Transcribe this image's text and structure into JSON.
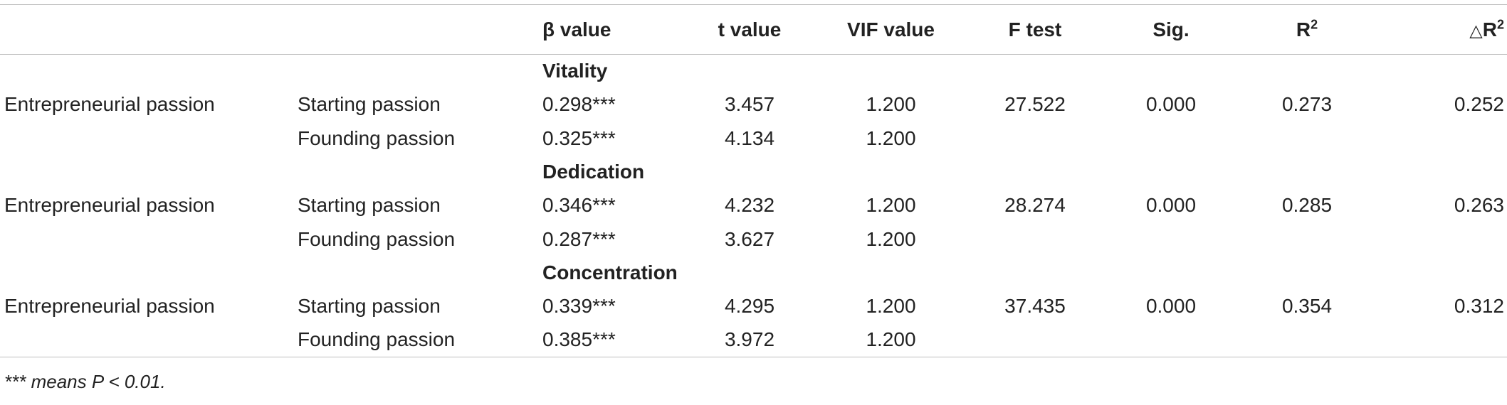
{
  "table": {
    "headers": {
      "beta": "β value",
      "t": "t value",
      "vif": "VIF value",
      "f": "F test",
      "sig": "Sig.",
      "r2_base": "R",
      "r2_sup": "2",
      "dr2_symbol": "△",
      "dr2_base": "R",
      "dr2_sup": "2"
    },
    "groups": [
      {
        "section": "Vitality",
        "row_label": "Entrepreneurial passion",
        "rows": [
          {
            "name": "Starting passion",
            "beta": "0.298***",
            "t": "3.457",
            "vif": "1.200",
            "f": "27.522",
            "sig": "0.000",
            "r2": "0.273",
            "dr2": "0.252"
          },
          {
            "name": "Founding passion",
            "beta": "0.325***",
            "t": "4.134",
            "vif": "1.200",
            "f": "",
            "sig": "",
            "r2": "",
            "dr2": ""
          }
        ]
      },
      {
        "section": "Dedication",
        "row_label": "Entrepreneurial passion",
        "rows": [
          {
            "name": "Starting passion",
            "beta": "0.346***",
            "t": "4.232",
            "vif": "1.200",
            "f": "28.274",
            "sig": "0.000",
            "r2": "0.285",
            "dr2": "0.263"
          },
          {
            "name": "Founding passion",
            "beta": "0.287***",
            "t": "3.627",
            "vif": "1.200",
            "f": "",
            "sig": "",
            "r2": "",
            "dr2": ""
          }
        ]
      },
      {
        "section": "Concentration",
        "row_label": "Entrepreneurial passion",
        "rows": [
          {
            "name": "Starting passion",
            "beta": "0.339***",
            "t": "4.295",
            "vif": "1.200",
            "f": "37.435",
            "sig": "0.000",
            "r2": "0.354",
            "dr2": "0.312"
          },
          {
            "name": "Founding passion",
            "beta": "0.385***",
            "t": "3.972",
            "vif": "1.200",
            "f": "",
            "sig": "",
            "r2": "",
            "dr2": ""
          }
        ]
      }
    ]
  },
  "footnote": "*** means P < 0.01."
}
